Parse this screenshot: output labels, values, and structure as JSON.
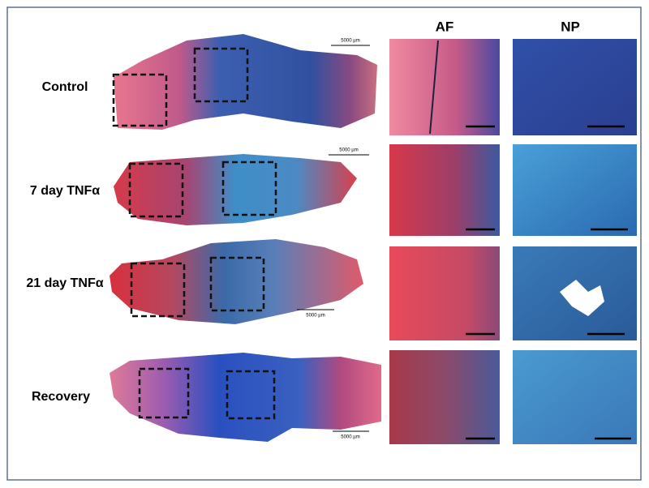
{
  "columns": [
    "AF",
    "NP"
  ],
  "rows": [
    {
      "label": "Control",
      "scale_bar": "5000 µm"
    },
    {
      "label": "7 day TNFα",
      "scale_bar": "5000 µm"
    },
    {
      "label": "21 day TNFα",
      "scale_bar": "5000 µm"
    },
    {
      "label": "Recovery",
      "scale_bar": "5000 µm"
    }
  ]
}
